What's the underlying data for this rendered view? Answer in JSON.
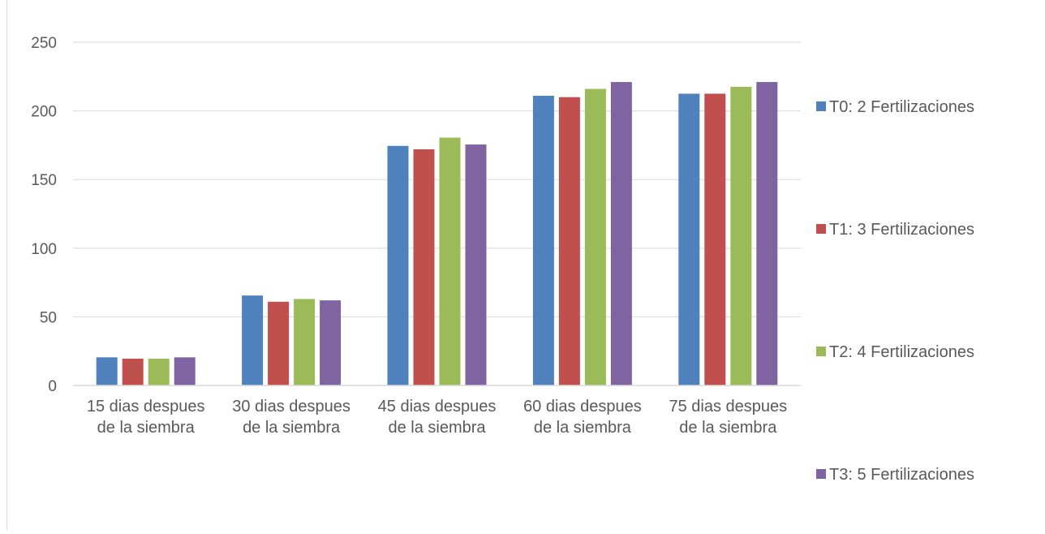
{
  "chart_data": {
    "type": "bar",
    "title": "",
    "xlabel": "",
    "ylabel": "",
    "ylim": [
      0,
      250
    ],
    "yticks": [
      "0",
      "50",
      "100",
      "150",
      "200",
      "250"
    ],
    "grid": true,
    "legend_position": "right",
    "categories": [
      [
        "15 dias despues",
        "de la siembra"
      ],
      [
        "30 dias despues",
        "de la siembra"
      ],
      [
        "45 dias despues",
        "de la siembra"
      ],
      [
        "60 dias despues",
        "de la siembra"
      ],
      [
        "75 dias despues",
        "de la siembra"
      ]
    ],
    "series": [
      {
        "name": "T0: 2 Fertilizaciones",
        "color": "#4f81bd",
        "values": [
          20.5,
          65.5,
          174.5,
          211,
          212.5
        ]
      },
      {
        "name": "T1: 3 Fertilizaciones",
        "color": "#c0504d",
        "values": [
          19.5,
          61,
          172,
          210,
          212.5
        ]
      },
      {
        "name": "T2: 4 Fertilizaciones",
        "color": "#9bbb59",
        "values": [
          19.5,
          63,
          180.5,
          216,
          217.5
        ]
      },
      {
        "name": "T3: 5 Fertilizaciones",
        "color": "#8064a2",
        "values": [
          20.5,
          62,
          175.5,
          221,
          221
        ]
      }
    ]
  }
}
